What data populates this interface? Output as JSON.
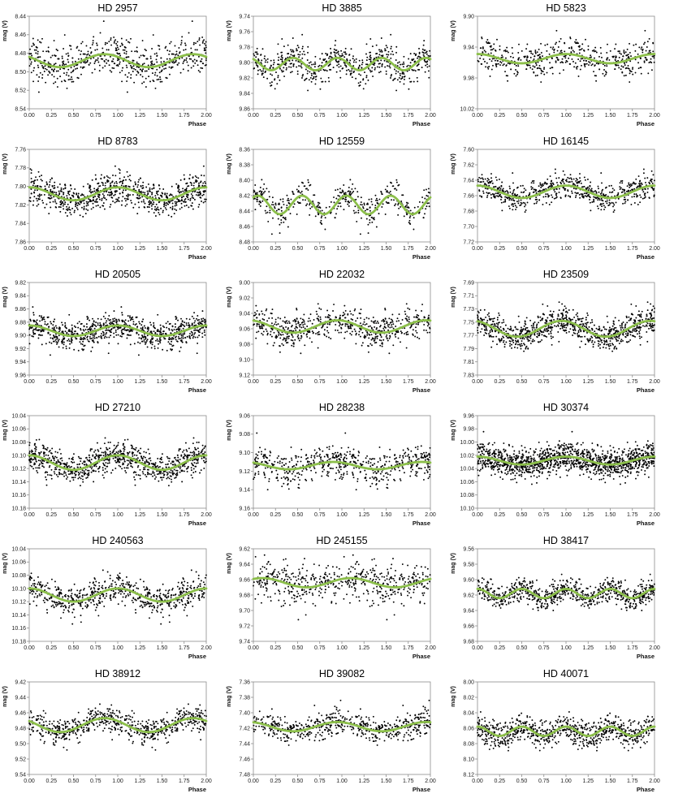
{
  "chart_data": [
    {
      "type": "scatter",
      "title": "HD 2957",
      "xlabel": "Phase",
      "ylabel": "mag (V)",
      "xlim": [
        0,
        2
      ],
      "ylim": [
        8.44,
        8.54
      ],
      "y_reversed": true,
      "x_ticks": [
        "0.00",
        "0.25",
        "0.50",
        "0.75",
        "1.00",
        "1.25",
        "1.50",
        "1.75",
        "2.00"
      ],
      "y_ticks": [
        "8.44",
        "8.46",
        "8.48",
        "8.50",
        "8.52",
        "8.54"
      ],
      "fit_curve": {
        "mean": 8.488,
        "amp": 0.007,
        "harmonic": 1,
        "phase_min": 0.35
      },
      "scatter": 0.012,
      "n_points": 300,
      "grid": false,
      "legend": "none",
      "colors": {
        "points": "#000000",
        "fit": "#8cbf4a"
      }
    },
    {
      "type": "scatter",
      "title": "HD 3885",
      "xlabel": "Phase",
      "ylabel": "mag (V)",
      "xlim": [
        0,
        2
      ],
      "ylim": [
        9.74,
        9.86
      ],
      "y_reversed": true,
      "x_ticks": [
        "0.00",
        "0.25",
        "0.50",
        "0.75",
        "1.00",
        "1.25",
        "1.50",
        "1.75",
        "2.00"
      ],
      "y_ticks": [
        "9.74",
        "9.76",
        "9.78",
        "9.80",
        "9.82",
        "9.84",
        "9.86"
      ],
      "fit_curve": {
        "mean": 9.802,
        "amp": 0.008,
        "harmonic": 2,
        "phase_min": 0.2
      },
      "scatter": 0.014,
      "n_points": 300,
      "grid": false,
      "legend": "none",
      "colors": {
        "points": "#000000",
        "fit": "#8cbf4a"
      }
    },
    {
      "type": "scatter",
      "title": "HD 5823",
      "xlabel": "Phase",
      "ylabel": "mag (V)",
      "xlim": [
        0,
        2
      ],
      "ylim": [
        9.9,
        10.02
      ],
      "y_reversed": true,
      "x_ticks": [
        "0.00",
        "0.25",
        "0.50",
        "0.75",
        "1.00",
        "1.25",
        "1.50",
        "1.75",
        "2.00"
      ],
      "y_ticks": [
        "9.90",
        "9.94",
        "9.98",
        "10.02"
      ],
      "fit_curve": {
        "mean": 9.955,
        "amp": 0.006,
        "harmonic": 1,
        "phase_min": 0.5
      },
      "scatter": 0.013,
      "n_points": 260,
      "grid": false,
      "legend": "none",
      "colors": {
        "points": "#000000",
        "fit": "#8cbf4a"
      }
    },
    {
      "type": "scatter",
      "title": "HD 8783",
      "xlabel": "Phase",
      "ylabel": "mag (V)",
      "xlim": [
        0,
        2
      ],
      "ylim": [
        7.76,
        7.86
      ],
      "y_reversed": true,
      "x_ticks": [
        "0.00",
        "0.25",
        "0.50",
        "0.75",
        "1.00",
        "1.25",
        "1.50",
        "1.75",
        "2.00"
      ],
      "y_ticks": [
        "7.76",
        "7.78",
        "7.80",
        "7.82",
        "7.84",
        "7.86"
      ],
      "fit_curve": {
        "mean": 7.808,
        "amp": 0.007,
        "harmonic": 1,
        "phase_min": 0.5
      },
      "scatter": 0.01,
      "n_points": 420,
      "grid": false,
      "legend": "none",
      "colors": {
        "points": "#000000",
        "fit": "#8cbf4a"
      }
    },
    {
      "type": "scatter",
      "title": "HD 12559",
      "xlabel": "Phase",
      "ylabel": "mag (V)",
      "xlim": [
        0,
        2
      ],
      "ylim": [
        8.36,
        8.48
      ],
      "y_reversed": true,
      "x_ticks": [
        "0.00",
        "0.25",
        "0.50",
        "0.75",
        "1.00",
        "1.25",
        "1.50",
        "1.75",
        "2.00"
      ],
      "y_ticks": [
        "8.36",
        "8.38",
        "8.40",
        "8.42",
        "8.44",
        "8.46",
        "8.48"
      ],
      "fit_curve": {
        "mean": 8.432,
        "amp": 0.012,
        "harmonic": 2,
        "phase_min": 0.3
      },
      "scatter": 0.012,
      "n_points": 220,
      "grid": false,
      "legend": "none",
      "colors": {
        "points": "#000000",
        "fit": "#8cbf4a"
      }
    },
    {
      "type": "scatter",
      "title": "HD 16145",
      "xlabel": "Phase",
      "ylabel": "mag (V)",
      "xlim": [
        0,
        2
      ],
      "ylim": [
        7.6,
        7.72
      ],
      "y_reversed": true,
      "x_ticks": [
        "0.00",
        "0.25",
        "0.50",
        "0.75",
        "1.00",
        "1.25",
        "1.50",
        "1.75",
        "2.00"
      ],
      "y_ticks": [
        "7.60",
        "7.62",
        "7.64",
        "7.66",
        "7.68",
        "7.70",
        "7.72"
      ],
      "fit_curve": {
        "mean": 7.655,
        "amp": 0.008,
        "harmonic": 1,
        "phase_min": 0.5
      },
      "scatter": 0.01,
      "n_points": 330,
      "grid": false,
      "legend": "none",
      "colors": {
        "points": "#000000",
        "fit": "#8cbf4a"
      }
    },
    {
      "type": "scatter",
      "title": "HD 20505",
      "xlabel": "Phase",
      "ylabel": "mag (V)",
      "xlim": [
        0,
        2
      ],
      "ylim": [
        9.82,
        9.96
      ],
      "y_reversed": true,
      "x_ticks": [
        "0.00",
        "0.25",
        "0.50",
        "0.75",
        "1.00",
        "1.25",
        "1.50",
        "1.75",
        "2.00"
      ],
      "y_ticks": [
        "9.82",
        "9.84",
        "9.86",
        "9.88",
        "9.90",
        "9.92",
        "9.94",
        "9.96"
      ],
      "fit_curve": {
        "mean": 9.893,
        "amp": 0.008,
        "harmonic": 1,
        "phase_min": 0.5
      },
      "scatter": 0.012,
      "n_points": 420,
      "grid": false,
      "legend": "none",
      "colors": {
        "points": "#000000",
        "fit": "#8cbf4a"
      }
    },
    {
      "type": "scatter",
      "title": "HD 22032",
      "xlabel": "Phase",
      "ylabel": "mag (V)",
      "xlim": [
        0,
        2
      ],
      "ylim": [
        9.0,
        9.12
      ],
      "y_reversed": true,
      "x_ticks": [
        "0.00",
        "0.25",
        "0.50",
        "0.75",
        "1.00",
        "1.25",
        "1.50",
        "1.75",
        "2.00"
      ],
      "y_ticks": [
        "9.00",
        "9.02",
        "9.04",
        "9.06",
        "9.08",
        "9.10",
        "9.12"
      ],
      "fit_curve": {
        "mean": 9.057,
        "amp": 0.008,
        "harmonic": 1,
        "phase_min": 0.45
      },
      "scatter": 0.012,
      "n_points": 320,
      "grid": false,
      "legend": "none",
      "colors": {
        "points": "#000000",
        "fit": "#8cbf4a"
      }
    },
    {
      "type": "scatter",
      "title": "HD 23509",
      "xlabel": "Phase",
      "ylabel": "mag (V)",
      "xlim": [
        0,
        2
      ],
      "ylim": [
        7.69,
        7.83
      ],
      "y_reversed": true,
      "x_ticks": [
        "0.00",
        "0.25",
        "0.50",
        "0.75",
        "1.00",
        "1.25",
        "1.50",
        "1.75",
        "2.00"
      ],
      "y_ticks": [
        "7.69",
        "7.71",
        "7.73",
        "7.75",
        "7.77",
        "7.79",
        "7.81",
        "7.83"
      ],
      "fit_curve": {
        "mean": 7.76,
        "amp": 0.012,
        "harmonic": 1,
        "phase_min": 0.45
      },
      "scatter": 0.013,
      "n_points": 460,
      "grid": false,
      "legend": "none",
      "colors": {
        "points": "#000000",
        "fit": "#8cbf4a"
      }
    },
    {
      "type": "scatter",
      "title": "HD 27210",
      "xlabel": "Phase",
      "ylabel": "mag (V)",
      "xlim": [
        0,
        2
      ],
      "ylim": [
        10.04,
        10.18
      ],
      "y_reversed": true,
      "x_ticks": [
        "0.00",
        "0.25",
        "0.50",
        "0.75",
        "1.00",
        "1.25",
        "1.50",
        "1.75",
        "2.00"
      ],
      "y_ticks": [
        "10.04",
        "10.06",
        "10.08",
        "10.10",
        "10.12",
        "10.14",
        "10.16",
        "10.18"
      ],
      "fit_curve": {
        "mean": 10.111,
        "amp": 0.011,
        "harmonic": 1,
        "phase_min": 0.5
      },
      "scatter": 0.013,
      "n_points": 440,
      "grid": false,
      "legend": "none",
      "colors": {
        "points": "#000000",
        "fit": "#8cbf4a"
      }
    },
    {
      "type": "scatter",
      "title": "HD 28238",
      "xlabel": "Phase",
      "ylabel": "mag (V)",
      "xlim": [
        0,
        2
      ],
      "ylim": [
        9.06,
        9.16
      ],
      "y_reversed": true,
      "x_ticks": [
        "0.00",
        "0.25",
        "0.50",
        "0.75",
        "1.00",
        "1.25",
        "1.50",
        "1.75",
        "2.00"
      ],
      "y_ticks": [
        "9.06",
        "9.08",
        "9.10",
        "9.12",
        "9.14",
        "9.16"
      ],
      "fit_curve": {
        "mean": 9.114,
        "amp": 0.004,
        "harmonic": 1,
        "phase_min": 0.4
      },
      "scatter": 0.011,
      "n_points": 300,
      "grid": false,
      "legend": "none",
      "colors": {
        "points": "#000000",
        "fit": "#8cbf4a"
      }
    },
    {
      "type": "scatter",
      "title": "HD 30374",
      "xlabel": "Phase",
      "ylabel": "mag (V)",
      "xlim": [
        0,
        2
      ],
      "ylim": [
        9.96,
        10.1
      ],
      "y_reversed": true,
      "x_ticks": [
        "0.00",
        "0.25",
        "0.50",
        "0.75",
        "1.00",
        "1.25",
        "1.50",
        "1.75",
        "2.00"
      ],
      "y_ticks": [
        "9.96",
        "9.98",
        "10.00",
        "10.02",
        "10.04",
        "10.06",
        "10.08",
        "10.10"
      ],
      "fit_curve": {
        "mean": 10.028,
        "amp": 0.006,
        "harmonic": 1,
        "phase_min": 0.5
      },
      "scatter": 0.013,
      "n_points": 700,
      "grid": false,
      "legend": "none",
      "colors": {
        "points": "#000000",
        "fit": "#8cbf4a"
      }
    },
    {
      "type": "scatter",
      "title": "HD 240563",
      "xlabel": "Phase",
      "ylabel": "mag (V)",
      "xlim": [
        0,
        2
      ],
      "ylim": [
        10.04,
        10.18
      ],
      "y_reversed": true,
      "x_ticks": [
        "0.00",
        "0.25",
        "0.50",
        "0.75",
        "1.00",
        "1.25",
        "1.50",
        "1.75",
        "2.00"
      ],
      "y_ticks": [
        "10.04",
        "10.06",
        "10.08",
        "10.10",
        "10.12",
        "10.14",
        "10.16",
        "10.18"
      ],
      "fit_curve": {
        "mean": 10.11,
        "amp": 0.01,
        "harmonic": 1,
        "phase_min": 0.5
      },
      "scatter": 0.013,
      "n_points": 340,
      "grid": false,
      "legend": "none",
      "colors": {
        "points": "#000000",
        "fit": "#8cbf4a"
      }
    },
    {
      "type": "scatter",
      "title": "HD 245155",
      "xlabel": "Phase",
      "ylabel": "mag (V)",
      "xlim": [
        0,
        2
      ],
      "ylim": [
        9.62,
        9.74
      ],
      "y_reversed": true,
      "x_ticks": [
        "0.00",
        "0.25",
        "0.50",
        "0.75",
        "1.00",
        "1.25",
        "1.50",
        "1.75",
        "2.00"
      ],
      "y_ticks": [
        "9.62",
        "9.64",
        "9.66",
        "9.68",
        "9.70",
        "9.72",
        "9.74"
      ],
      "fit_curve": {
        "mean": 9.664,
        "amp": 0.006,
        "harmonic": 1,
        "phase_min": 0.6
      },
      "scatter": 0.016,
      "n_points": 280,
      "grid": false,
      "legend": "none",
      "colors": {
        "points": "#000000",
        "fit": "#8cbf4a"
      }
    },
    {
      "type": "scatter",
      "title": "HD 38417",
      "xlabel": "Phase",
      "ylabel": "mag (V)",
      "xlim": [
        0,
        2
      ],
      "ylim": [
        9.56,
        9.68
      ],
      "y_reversed": true,
      "x_ticks": [
        "0.00",
        "0.25",
        "0.50",
        "0.75",
        "1.00",
        "1.25",
        "1.50",
        "1.75",
        "2.00"
      ],
      "y_ticks": [
        "9.56",
        "9.58",
        "9.60",
        "9.62",
        "9.64",
        "9.66",
        "9.68"
      ],
      "fit_curve": {
        "mean": 9.618,
        "amp": 0.006,
        "harmonic": 2,
        "phase_min": 0.25
      },
      "scatter": 0.009,
      "n_points": 380,
      "grid": false,
      "legend": "none",
      "colors": {
        "points": "#000000",
        "fit": "#8cbf4a"
      }
    },
    {
      "type": "scatter",
      "title": "HD 38912",
      "xlabel": "Phase",
      "ylabel": "mag (V)",
      "xlim": [
        0,
        2
      ],
      "ylim": [
        9.42,
        9.54
      ],
      "y_reversed": true,
      "x_ticks": [
        "0.00",
        "0.25",
        "0.50",
        "0.75",
        "1.00",
        "1.25",
        "1.50",
        "1.75",
        "2.00"
      ],
      "y_ticks": [
        "9.42",
        "9.44",
        "9.46",
        "9.48",
        "9.50",
        "9.52",
        "9.54"
      ],
      "fit_curve": {
        "mean": 9.476,
        "amp": 0.009,
        "harmonic": 1,
        "phase_min": 0.35
      },
      "scatter": 0.01,
      "n_points": 340,
      "grid": false,
      "legend": "none",
      "colors": {
        "points": "#000000",
        "fit": "#8cbf4a"
      }
    },
    {
      "type": "scatter",
      "title": "HD 39082",
      "xlabel": "Phase",
      "ylabel": "mag (V)",
      "xlim": [
        0,
        2
      ],
      "ylim": [
        7.36,
        7.48
      ],
      "y_reversed": true,
      "x_ticks": [
        "0.00",
        "0.25",
        "0.50",
        "0.75",
        "1.00",
        "1.25",
        "1.50",
        "1.75",
        "2.00"
      ],
      "y_ticks": [
        "7.36",
        "7.38",
        "7.40",
        "7.42",
        "7.44",
        "7.46",
        "7.48"
      ],
      "fit_curve": {
        "mean": 7.418,
        "amp": 0.006,
        "harmonic": 1,
        "phase_min": 0.45
      },
      "scatter": 0.01,
      "n_points": 300,
      "grid": false,
      "legend": "none",
      "colors": {
        "points": "#000000",
        "fit": "#8cbf4a"
      }
    },
    {
      "type": "scatter",
      "title": "HD 40071",
      "xlabel": "Phase",
      "ylabel": "mag (V)",
      "xlim": [
        0,
        2
      ],
      "ylim": [
        8.0,
        8.12
      ],
      "y_reversed": true,
      "x_ticks": [
        "0.00",
        "0.25",
        "0.50",
        "0.75",
        "1.00",
        "1.25",
        "1.50",
        "1.75",
        "2.00"
      ],
      "y_ticks": [
        "8.00",
        "8.02",
        "8.04",
        "8.06",
        "8.08",
        "8.10",
        "8.12"
      ],
      "fit_curve": {
        "mean": 8.064,
        "amp": 0.006,
        "harmonic": 2,
        "phase_min": 0.25
      },
      "scatter": 0.01,
      "n_points": 400,
      "grid": false,
      "legend": "none",
      "colors": {
        "points": "#000000",
        "fit": "#8cbf4a"
      }
    }
  ]
}
